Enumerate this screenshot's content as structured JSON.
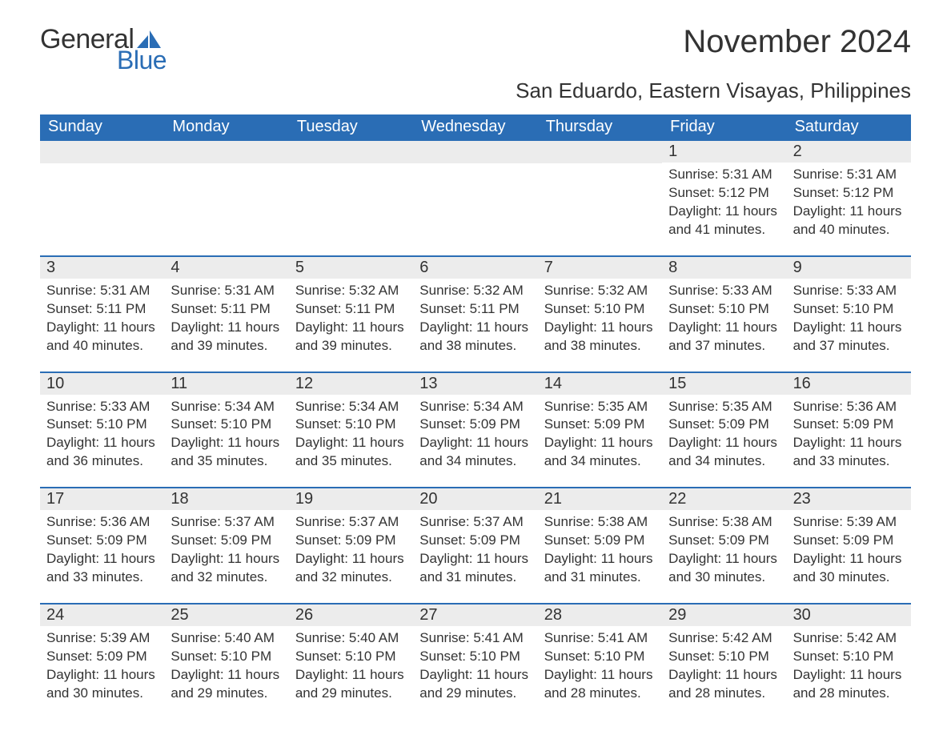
{
  "logo": {
    "text1": "General",
    "text2": "Blue",
    "icon_color": "#2a6db5"
  },
  "title": "November 2024",
  "subtitle": "San Eduardo, Eastern Visayas, Philippines",
  "colors": {
    "header_bg": "#2a6db5",
    "header_text": "#ffffff",
    "date_bg": "#ececec",
    "rule": "#2a6db5",
    "body_text": "#333333",
    "page_bg": "#ffffff"
  },
  "daynames": [
    "Sunday",
    "Monday",
    "Tuesday",
    "Wednesday",
    "Thursday",
    "Friday",
    "Saturday"
  ],
  "weeks": [
    [
      {
        "empty": true
      },
      {
        "empty": true
      },
      {
        "empty": true
      },
      {
        "empty": true
      },
      {
        "empty": true
      },
      {
        "date": "1",
        "sunrise": "Sunrise: 5:31 AM",
        "sunset": "Sunset: 5:12 PM",
        "daylight": "Daylight: 11 hours and 41 minutes."
      },
      {
        "date": "2",
        "sunrise": "Sunrise: 5:31 AM",
        "sunset": "Sunset: 5:12 PM",
        "daylight": "Daylight: 11 hours and 40 minutes."
      }
    ],
    [
      {
        "date": "3",
        "sunrise": "Sunrise: 5:31 AM",
        "sunset": "Sunset: 5:11 PM",
        "daylight": "Daylight: 11 hours and 40 minutes."
      },
      {
        "date": "4",
        "sunrise": "Sunrise: 5:31 AM",
        "sunset": "Sunset: 5:11 PM",
        "daylight": "Daylight: 11 hours and 39 minutes."
      },
      {
        "date": "5",
        "sunrise": "Sunrise: 5:32 AM",
        "sunset": "Sunset: 5:11 PM",
        "daylight": "Daylight: 11 hours and 39 minutes."
      },
      {
        "date": "6",
        "sunrise": "Sunrise: 5:32 AM",
        "sunset": "Sunset: 5:11 PM",
        "daylight": "Daylight: 11 hours and 38 minutes."
      },
      {
        "date": "7",
        "sunrise": "Sunrise: 5:32 AM",
        "sunset": "Sunset: 5:10 PM",
        "daylight": "Daylight: 11 hours and 38 minutes."
      },
      {
        "date": "8",
        "sunrise": "Sunrise: 5:33 AM",
        "sunset": "Sunset: 5:10 PM",
        "daylight": "Daylight: 11 hours and 37 minutes."
      },
      {
        "date": "9",
        "sunrise": "Sunrise: 5:33 AM",
        "sunset": "Sunset: 5:10 PM",
        "daylight": "Daylight: 11 hours and 37 minutes."
      }
    ],
    [
      {
        "date": "10",
        "sunrise": "Sunrise: 5:33 AM",
        "sunset": "Sunset: 5:10 PM",
        "daylight": "Daylight: 11 hours and 36 minutes."
      },
      {
        "date": "11",
        "sunrise": "Sunrise: 5:34 AM",
        "sunset": "Sunset: 5:10 PM",
        "daylight": "Daylight: 11 hours and 35 minutes."
      },
      {
        "date": "12",
        "sunrise": "Sunrise: 5:34 AM",
        "sunset": "Sunset: 5:10 PM",
        "daylight": "Daylight: 11 hours and 35 minutes."
      },
      {
        "date": "13",
        "sunrise": "Sunrise: 5:34 AM",
        "sunset": "Sunset: 5:09 PM",
        "daylight": "Daylight: 11 hours and 34 minutes."
      },
      {
        "date": "14",
        "sunrise": "Sunrise: 5:35 AM",
        "sunset": "Sunset: 5:09 PM",
        "daylight": "Daylight: 11 hours and 34 minutes."
      },
      {
        "date": "15",
        "sunrise": "Sunrise: 5:35 AM",
        "sunset": "Sunset: 5:09 PM",
        "daylight": "Daylight: 11 hours and 34 minutes."
      },
      {
        "date": "16",
        "sunrise": "Sunrise: 5:36 AM",
        "sunset": "Sunset: 5:09 PM",
        "daylight": "Daylight: 11 hours and 33 minutes."
      }
    ],
    [
      {
        "date": "17",
        "sunrise": "Sunrise: 5:36 AM",
        "sunset": "Sunset: 5:09 PM",
        "daylight": "Daylight: 11 hours and 33 minutes."
      },
      {
        "date": "18",
        "sunrise": "Sunrise: 5:37 AM",
        "sunset": "Sunset: 5:09 PM",
        "daylight": "Daylight: 11 hours and 32 minutes."
      },
      {
        "date": "19",
        "sunrise": "Sunrise: 5:37 AM",
        "sunset": "Sunset: 5:09 PM",
        "daylight": "Daylight: 11 hours and 32 minutes."
      },
      {
        "date": "20",
        "sunrise": "Sunrise: 5:37 AM",
        "sunset": "Sunset: 5:09 PM",
        "daylight": "Daylight: 11 hours and 31 minutes."
      },
      {
        "date": "21",
        "sunrise": "Sunrise: 5:38 AM",
        "sunset": "Sunset: 5:09 PM",
        "daylight": "Daylight: 11 hours and 31 minutes."
      },
      {
        "date": "22",
        "sunrise": "Sunrise: 5:38 AM",
        "sunset": "Sunset: 5:09 PM",
        "daylight": "Daylight: 11 hours and 30 minutes."
      },
      {
        "date": "23",
        "sunrise": "Sunrise: 5:39 AM",
        "sunset": "Sunset: 5:09 PM",
        "daylight": "Daylight: 11 hours and 30 minutes."
      }
    ],
    [
      {
        "date": "24",
        "sunrise": "Sunrise: 5:39 AM",
        "sunset": "Sunset: 5:09 PM",
        "daylight": "Daylight: 11 hours and 30 minutes."
      },
      {
        "date": "25",
        "sunrise": "Sunrise: 5:40 AM",
        "sunset": "Sunset: 5:10 PM",
        "daylight": "Daylight: 11 hours and 29 minutes."
      },
      {
        "date": "26",
        "sunrise": "Sunrise: 5:40 AM",
        "sunset": "Sunset: 5:10 PM",
        "daylight": "Daylight: 11 hours and 29 minutes."
      },
      {
        "date": "27",
        "sunrise": "Sunrise: 5:41 AM",
        "sunset": "Sunset: 5:10 PM",
        "daylight": "Daylight: 11 hours and 29 minutes."
      },
      {
        "date": "28",
        "sunrise": "Sunrise: 5:41 AM",
        "sunset": "Sunset: 5:10 PM",
        "daylight": "Daylight: 11 hours and 28 minutes."
      },
      {
        "date": "29",
        "sunrise": "Sunrise: 5:42 AM",
        "sunset": "Sunset: 5:10 PM",
        "daylight": "Daylight: 11 hours and 28 minutes."
      },
      {
        "date": "30",
        "sunrise": "Sunrise: 5:42 AM",
        "sunset": "Sunset: 5:10 PM",
        "daylight": "Daylight: 11 hours and 28 minutes."
      }
    ]
  ]
}
